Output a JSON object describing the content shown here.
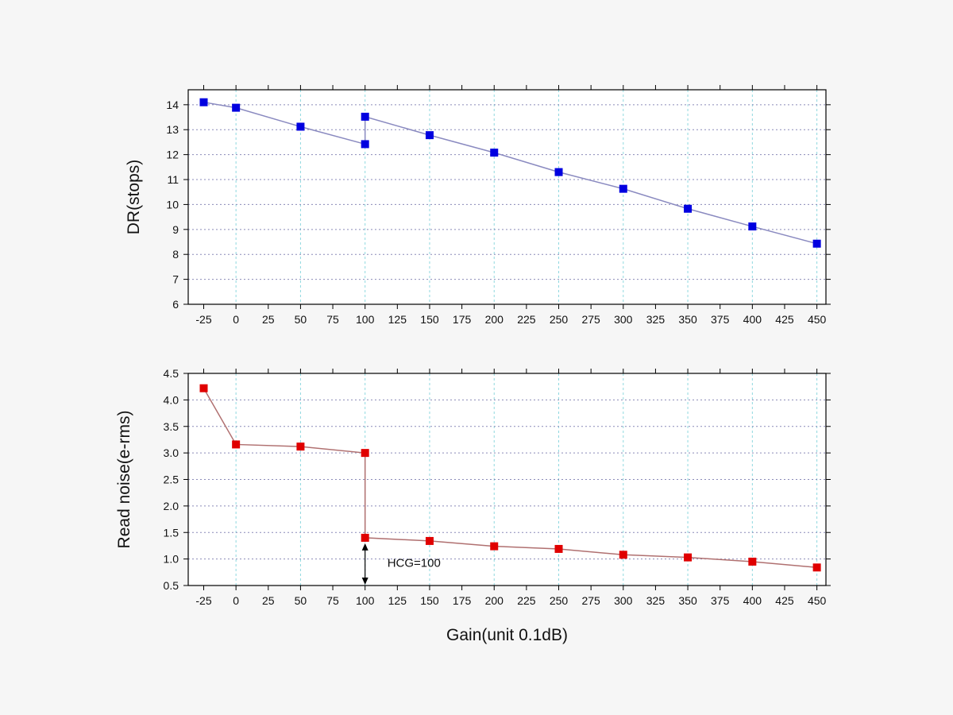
{
  "chart_data": [
    {
      "type": "line",
      "title": "",
      "xlabel": "",
      "ylabel": "DR(stops)",
      "xlim": [
        -37,
        457
      ],
      "ylim": [
        6,
        14.6
      ],
      "xticks": [
        -25,
        0,
        25,
        50,
        75,
        100,
        125,
        150,
        175,
        200,
        225,
        250,
        275,
        300,
        325,
        350,
        375,
        400,
        425,
        450
      ],
      "yticks": [
        6,
        7,
        8,
        9,
        10,
        11,
        12,
        13,
        14
      ],
      "grid": true,
      "legend": "none",
      "series": [
        {
          "color": "#0000e0",
          "line_color": "#8a8ac0",
          "marker": "square",
          "points": [
            {
              "x": -25,
              "y": 14.1
            },
            {
              "x": 0,
              "y": 13.88
            },
            {
              "x": 50,
              "y": 13.12
            },
            {
              "x": 100,
              "y": 12.42
            },
            {
              "x": 100,
              "y": 13.52
            },
            {
              "x": 150,
              "y": 12.78
            },
            {
              "x": 200,
              "y": 12.08
            },
            {
              "x": 250,
              "y": 11.3
            },
            {
              "x": 300,
              "y": 10.63
            },
            {
              "x": 350,
              "y": 9.83
            },
            {
              "x": 400,
              "y": 9.12
            },
            {
              "x": 450,
              "y": 8.43
            }
          ]
        }
      ]
    },
    {
      "type": "line",
      "title": "",
      "xlabel": "Gain(unit 0.1dB)",
      "ylabel": "Read noise(e-rms)",
      "xlim": [
        -37,
        457
      ],
      "ylim": [
        0.5,
        4.5
      ],
      "xticks": [
        -25,
        0,
        25,
        50,
        75,
        100,
        125,
        150,
        175,
        200,
        225,
        250,
        275,
        300,
        325,
        350,
        375,
        400,
        425,
        450
      ],
      "yticks": [
        0.5,
        1.0,
        1.5,
        2.0,
        2.5,
        3.0,
        3.5,
        4.0,
        4.5
      ],
      "ytick_labels": [
        "0.5",
        "1.0",
        "1.5",
        "2.0",
        "2.5",
        "3.0",
        "3.5",
        "4.0",
        "4.5"
      ],
      "grid": true,
      "legend": "none",
      "annotation": {
        "text": "HCG=100",
        "x": 100,
        "y_from": 1.4,
        "y_to": 0.5
      },
      "series": [
        {
          "color": "#e00000",
          "line_color": "#b07070",
          "marker": "square",
          "points": [
            {
              "x": -25,
              "y": 4.22
            },
            {
              "x": 0,
              "y": 3.16
            },
            {
              "x": 50,
              "y": 3.12
            },
            {
              "x": 100,
              "y": 3.0
            },
            {
              "x": 100,
              "y": 1.4
            },
            {
              "x": 150,
              "y": 1.34
            },
            {
              "x": 200,
              "y": 1.24
            },
            {
              "x": 250,
              "y": 1.19
            },
            {
              "x": 300,
              "y": 1.08
            },
            {
              "x": 350,
              "y": 1.03
            },
            {
              "x": 400,
              "y": 0.95
            },
            {
              "x": 450,
              "y": 0.84
            }
          ]
        }
      ]
    }
  ]
}
